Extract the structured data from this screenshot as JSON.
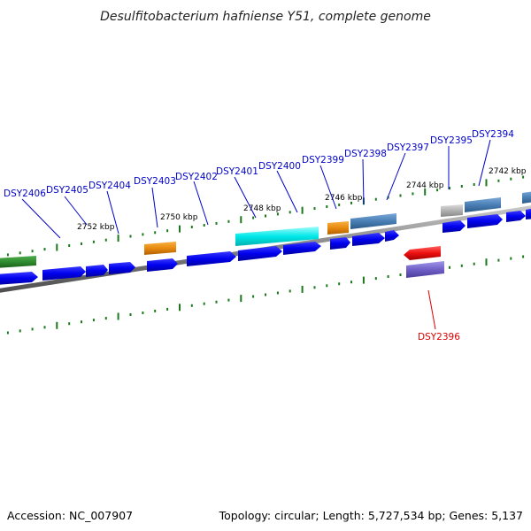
{
  "title": "Desulfitobacterium hafniense Y51, complete genome",
  "footer": {
    "accession": "Accession: NC_007907",
    "stats": "Topology: circular; Length: 5,727,534 bp; Genes: 5,137"
  },
  "colors": {
    "backbone": "#808080",
    "tick": "#1a7a1a",
    "gene_blue": "#0000ee",
    "label_fwd": "#0000cc",
    "label_rev": "#dd0000"
  },
  "kbp_labels": [
    {
      "text": "2752 kbp"
    },
    {
      "text": "2750 kbp"
    },
    {
      "text": "2748 kbp"
    },
    {
      "text": "2746 kbp"
    },
    {
      "text": "2744 kbp"
    },
    {
      "text": "2742 kbp"
    }
  ],
  "gene_labels": [
    {
      "text": "DSY2406",
      "strand": "forward"
    },
    {
      "text": "DSY2405",
      "strand": "forward"
    },
    {
      "text": "DSY2404",
      "strand": "forward"
    },
    {
      "text": "DSY2403",
      "strand": "forward"
    },
    {
      "text": "DSY2402",
      "strand": "forward"
    },
    {
      "text": "DSY2401",
      "strand": "forward"
    },
    {
      "text": "DSY2400",
      "strand": "forward"
    },
    {
      "text": "DSY2399",
      "strand": "forward"
    },
    {
      "text": "DSY2398",
      "strand": "forward"
    },
    {
      "text": "DSY2397",
      "strand": "forward"
    },
    {
      "text": "DSY2395",
      "strand": "forward"
    },
    {
      "text": "DSY2394",
      "strand": "forward"
    },
    {
      "text": "DSY2396",
      "strand": "reverse"
    }
  ],
  "feature_colors": {
    "green": "#2e8b2e",
    "orange": "#e88a10",
    "cyan": "#00e8e8",
    "steel": "#4a7fb5",
    "gray": "#b0b0b0",
    "red": "#ee1010",
    "purple": "#7060c8"
  }
}
